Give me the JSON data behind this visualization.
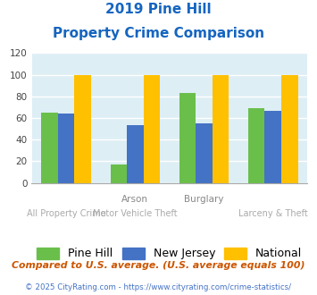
{
  "title_line1": "2019 Pine Hill",
  "title_line2": "Property Crime Comparison",
  "pine_hill": [
    65,
    17,
    83,
    69
  ],
  "new_jersey": [
    64,
    53,
    55,
    67
  ],
  "national": [
    100,
    100,
    100,
    100
  ],
  "colors": {
    "pine_hill": "#6abf4b",
    "new_jersey": "#4472c4",
    "national": "#ffc000"
  },
  "ylim": [
    0,
    120
  ],
  "yticks": [
    0,
    20,
    40,
    60,
    80,
    100,
    120
  ],
  "top_labels": [
    "",
    "Arson",
    "Burglary",
    ""
  ],
  "bottom_labels": [
    "All Property Crime",
    "Motor Vehicle Theft",
    "",
    "Larceny & Theft"
  ],
  "legend_labels": [
    "Pine Hill",
    "New Jersey",
    "National"
  ],
  "footnote1": "Compared to U.S. average. (U.S. average equals 100)",
  "footnote2": "© 2025 CityRating.com - https://www.cityrating.com/crime-statistics/",
  "background_color": "#ddeef5",
  "figure_background": "#ffffff",
  "title_color": "#1565c0",
  "grid_color": "#ffffff",
  "top_label_color": "#888888",
  "bottom_label_color": "#aaaaaa",
  "footnote1_color": "#cc5500",
  "footnote2_color": "#4472c4"
}
